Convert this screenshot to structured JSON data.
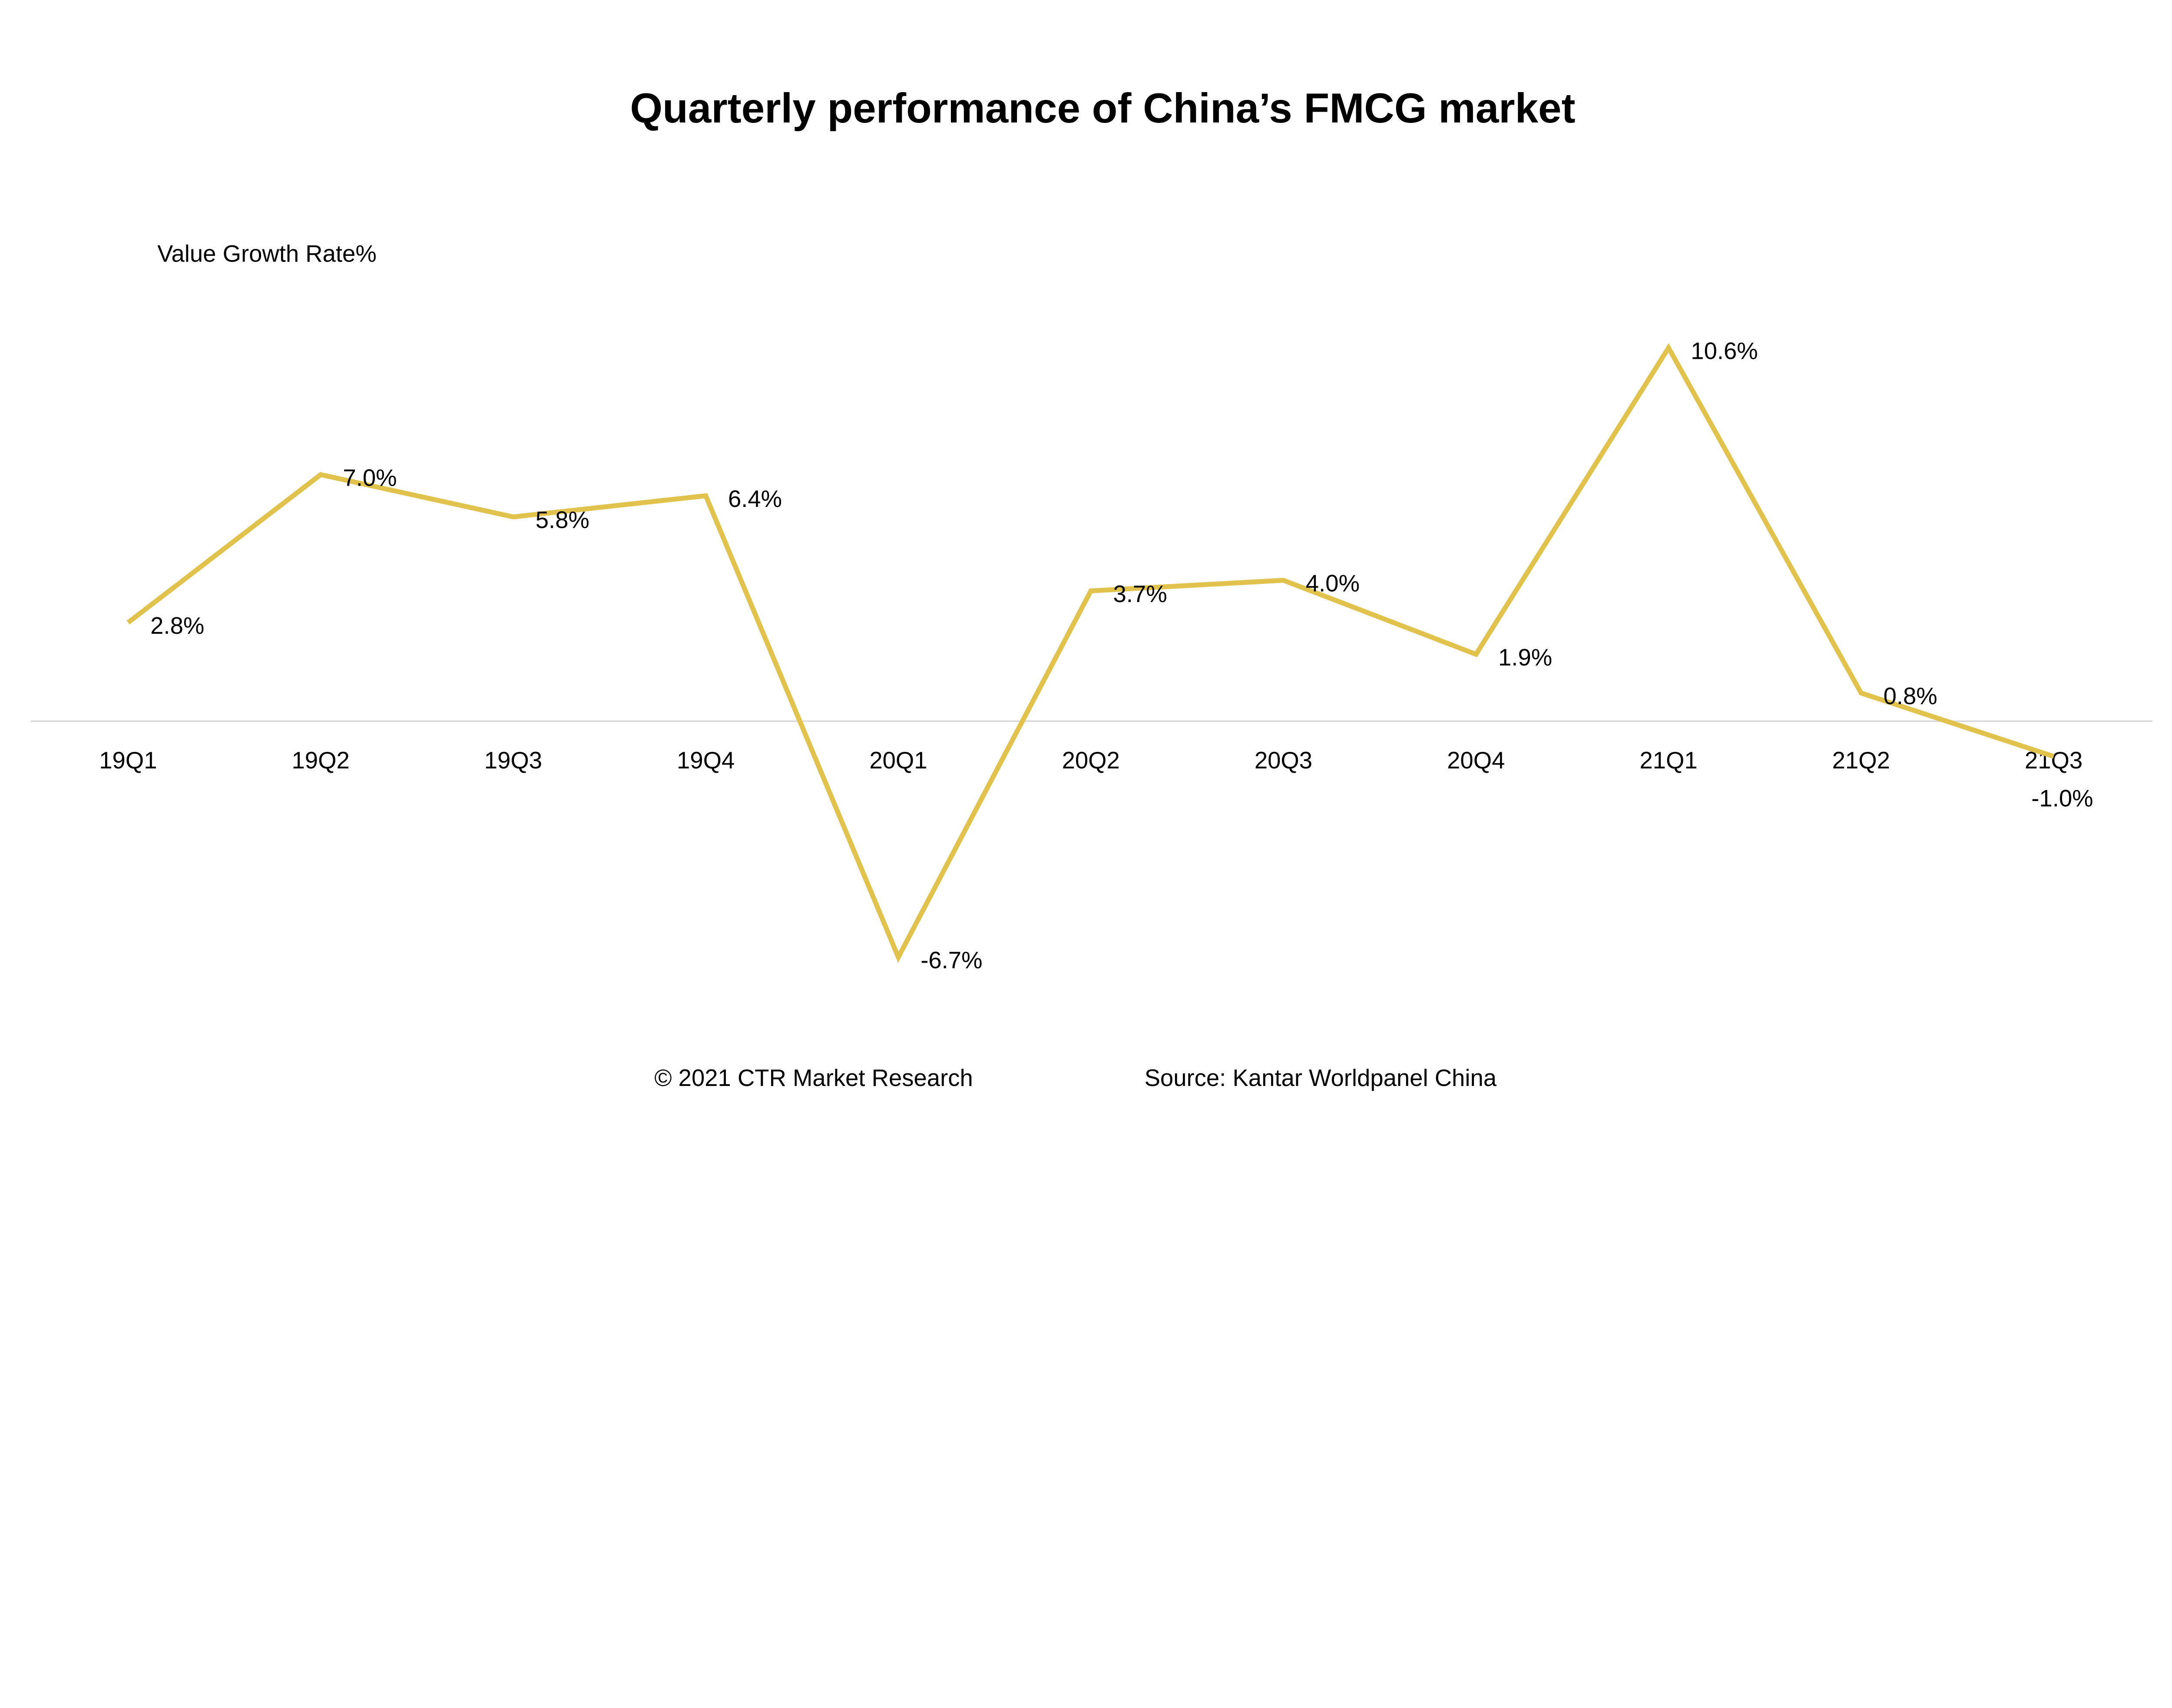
{
  "chart_data": {
    "type": "line",
    "title": "Quarterly performance of China’s FMCG market",
    "ylabel": "Value Growth Rate%",
    "xlabel": "",
    "categories": [
      "19Q1",
      "19Q2",
      "19Q3",
      "19Q4",
      "20Q1",
      "20Q2",
      "20Q3",
      "20Q4",
      "21Q1",
      "21Q2",
      "21Q3"
    ],
    "series": [
      {
        "values": [
          2.8,
          7.0,
          5.8,
          6.4,
          -6.7,
          3.7,
          4.0,
          1.9,
          10.6,
          0.8,
          -1.0
        ],
        "labels": [
          "2.8%",
          "7.0%",
          "5.8%",
          "6.4%",
          "-6.7%",
          "3.7%",
          "4.0%",
          "1.9%",
          "10.6%",
          "0.8%",
          "-1.0%"
        ],
        "color": "#E0C24D"
      }
    ],
    "ylim": [
      -8,
      12
    ],
    "grid": false,
    "legend": "none",
    "axis_color": "#D9D9D9"
  },
  "footer": {
    "copyright": "© 2021 CTR Market Research",
    "source": "Source: Kantar Worldpanel China"
  }
}
